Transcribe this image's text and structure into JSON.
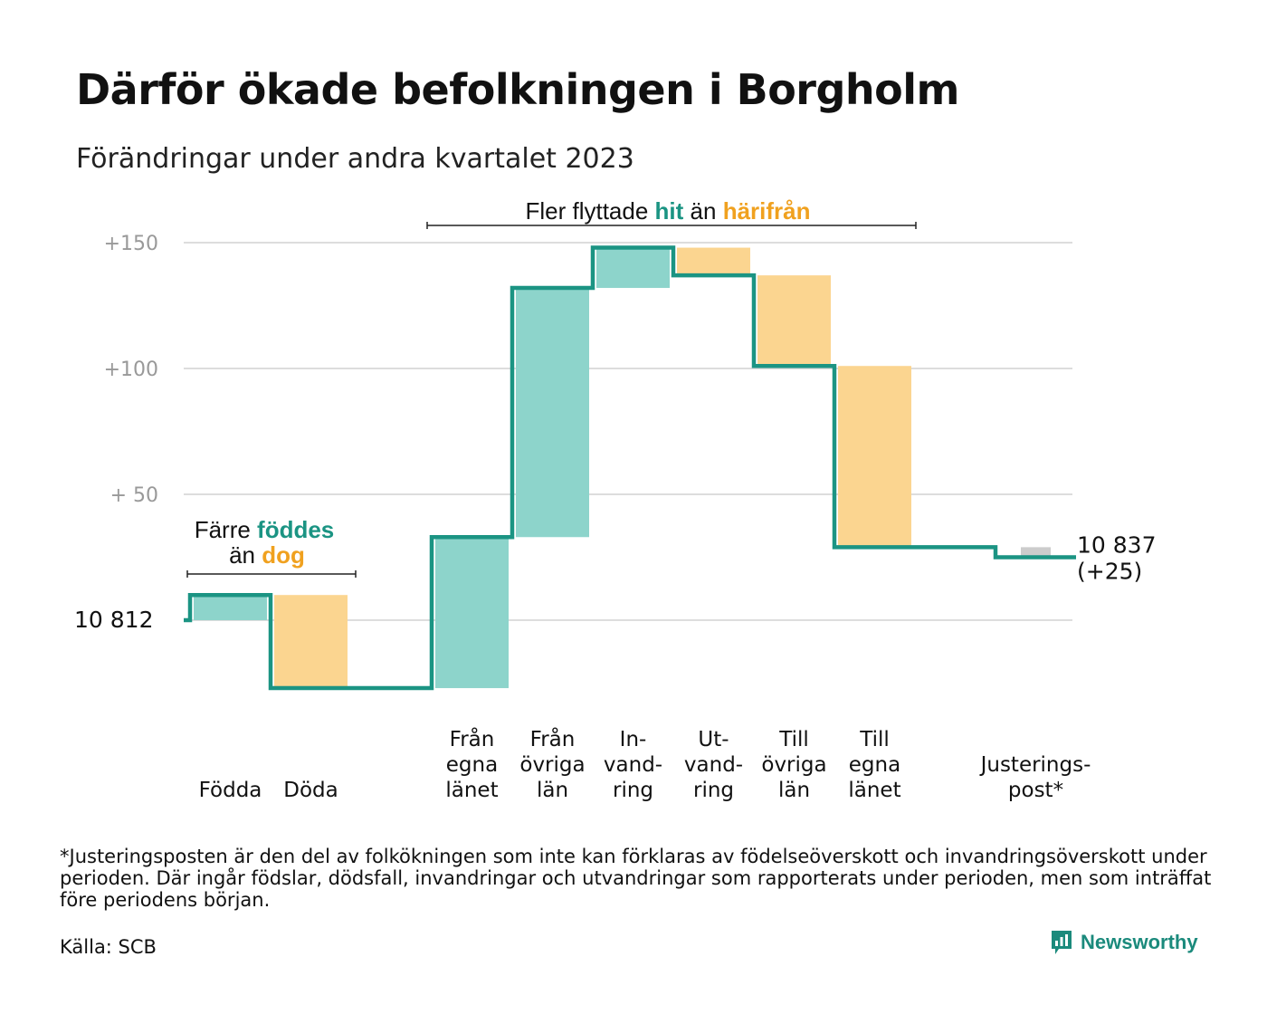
{
  "title": "Därför ökade befolkningen i Borgholm",
  "subtitle": "Förändringar under andra kvartalet 2023",
  "footnote": "*Justeringsposten är den del av folkökningen som inte kan förklaras av födelseöverskott och invandringsöverskott under perioden. Där ingår födslar, dödsfall, invandringar och utvandringar som rapporterats under perioden, men som inträffat före periodens början.",
  "source": "Källa: SCB",
  "brand": "Newsworthy",
  "colors": {
    "teal": "#1b9483",
    "teal_light": "#8dd4cb",
    "orange_light": "#fbd590",
    "orange_text": "#f0a11f",
    "grey": "#cccccc",
    "grid": "#dddddd",
    "axis_text": "#999999"
  },
  "chart_data": {
    "type": "waterfall",
    "start_value": 10812,
    "end_value": 10837,
    "start_label": "10  812",
    "end_label_line1": "10 837",
    "end_label_line2": "(+25)",
    "y_ticks": [
      {
        "value": 150,
        "label": "+150"
      },
      {
        "value": 100,
        "label": "+100"
      },
      {
        "value": 50,
        "label": "+  50"
      },
      {
        "value": 0,
        "label": ""
      }
    ],
    "ylim": [
      -27,
      153
    ],
    "steps": [
      {
        "label": [
          "Födda"
        ],
        "delta": 10,
        "kind": "in"
      },
      {
        "label": [
          "Döda"
        ],
        "delta": -37,
        "kind": "out"
      },
      {
        "label": [],
        "delta": 0,
        "kind": "gap"
      },
      {
        "label": [
          "Från",
          "egna",
          "länet"
        ],
        "delta": 60,
        "kind": "in"
      },
      {
        "label": [
          "Från",
          "övriga",
          "län"
        ],
        "delta": 99,
        "kind": "in"
      },
      {
        "label": [
          "In-",
          "vand-",
          "ring"
        ],
        "delta": 16,
        "kind": "in"
      },
      {
        "label": [
          "Ut-",
          "vand-",
          "ring"
        ],
        "delta": -11,
        "kind": "out"
      },
      {
        "label": [
          "Till",
          "övriga",
          "län"
        ],
        "delta": -36,
        "kind": "out"
      },
      {
        "label": [
          "Till",
          "egna",
          "länet"
        ],
        "delta": -72,
        "kind": "out"
      },
      {
        "label": [],
        "delta": 0,
        "kind": "gap"
      },
      {
        "label": [
          "Justerings-",
          "post*"
        ],
        "delta": -4,
        "kind": "adj"
      }
    ],
    "annotations": {
      "births": {
        "line1_pre": "Färre",
        "line1_hl": "föddes",
        "line2_pre": "än",
        "line2_hl": "dog"
      },
      "migration": {
        "pre": "Fler flyttade",
        "hl1": "hit",
        "mid": "än",
        "hl2": "härifrån"
      }
    }
  }
}
